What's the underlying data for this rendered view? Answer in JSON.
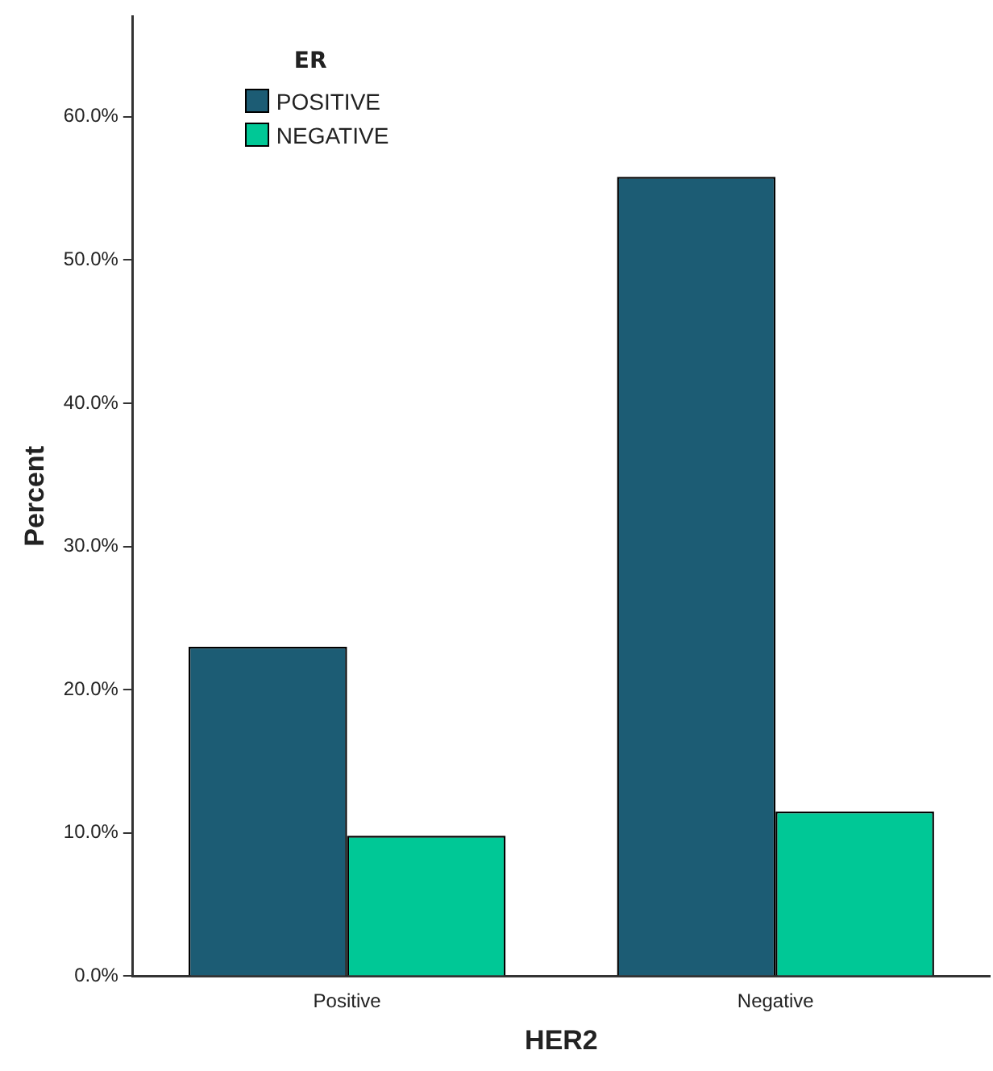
{
  "chart_data": {
    "type": "bar",
    "xlabel": "HER2",
    "ylabel": "Percent",
    "legend_title": "ER",
    "categories": [
      "Positive",
      "Negative"
    ],
    "series": [
      {
        "name": "POSITIVE",
        "color": "#1c5c74",
        "values": [
          23.0,
          55.8
        ]
      },
      {
        "name": "NEGATIVE",
        "color": "#00c896",
        "values": [
          9.8,
          11.5
        ]
      }
    ],
    "ylim": [
      0,
      67
    ],
    "yticks": [
      {
        "value": 0,
        "label": "0.0%"
      },
      {
        "value": 10,
        "label": "10.0%"
      },
      {
        "value": 20,
        "label": "20.0%"
      },
      {
        "value": 30,
        "label": "30.0%"
      },
      {
        "value": 40,
        "label": "40.0%"
      },
      {
        "value": 50,
        "label": "50.0%"
      },
      {
        "value": 60,
        "label": "60.0%"
      }
    ],
    "grid": false,
    "legend": "top left"
  }
}
